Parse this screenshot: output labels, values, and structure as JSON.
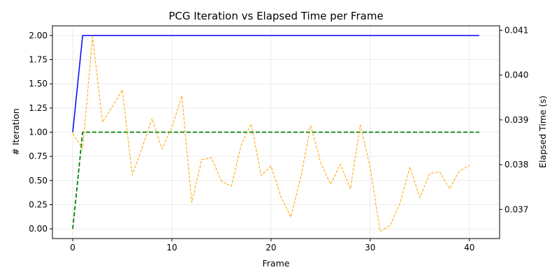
{
  "chart_data": {
    "type": "line",
    "title": "PCG Iteration vs Elapsed Time per Frame",
    "xlabel": "Frame",
    "ylabel_left": "# Iteration",
    "ylabel_right": "Elapsed Time (s)",
    "xlim": [
      -2.05,
      43.05
    ],
    "ylim_left": [
      -0.1,
      2.1
    ],
    "ylim_right": [
      0.03635,
      0.0411
    ],
    "x_ticks": [
      0,
      10,
      20,
      30,
      40
    ],
    "y_ticks_left": [
      "0.00",
      "0.25",
      "0.50",
      "0.75",
      "1.00",
      "1.25",
      "1.50",
      "1.75",
      "2.00"
    ],
    "y_ticks_right": [
      "0.037",
      "0.038",
      "0.039",
      "0.040",
      "0.041"
    ],
    "grid": true,
    "series": [
      {
        "axis": "left",
        "color": "#0000ff",
        "dash": "solid",
        "x": [
          0,
          1,
          41
        ],
        "values": [
          1,
          2,
          2
        ]
      },
      {
        "axis": "left",
        "color": "#008000",
        "dash": "dashed",
        "x": [
          0,
          1,
          41
        ],
        "values": [
          0,
          1,
          1
        ]
      },
      {
        "axis": "right",
        "color": "#ffa500",
        "dash": "dashed-thin",
        "x": [
          0,
          1,
          2,
          3,
          4,
          5,
          6,
          7,
          8,
          9,
          10,
          11,
          12,
          13,
          14,
          15,
          16,
          17,
          18,
          19,
          20,
          21,
          22,
          23,
          24,
          25,
          26,
          27,
          28,
          29,
          30,
          31,
          32,
          33,
          34,
          35,
          36,
          37,
          38,
          39,
          40
        ],
        "values": [
          0.0387,
          0.03835,
          0.04085,
          0.03895,
          0.0393,
          0.03967,
          0.03777,
          0.03838,
          0.03903,
          0.03835,
          0.03883,
          0.03954,
          0.03715,
          0.03811,
          0.03815,
          0.03763,
          0.03752,
          0.03845,
          0.03891,
          0.03776,
          0.03797,
          0.03728,
          0.03683,
          0.03772,
          0.03887,
          0.03805,
          0.03756,
          0.03801,
          0.03746,
          0.03889,
          0.03793,
          0.03651,
          0.03664,
          0.03713,
          0.03795,
          0.03726,
          0.0378,
          0.03784,
          0.03746,
          0.03786,
          0.03798
        ]
      }
    ]
  }
}
